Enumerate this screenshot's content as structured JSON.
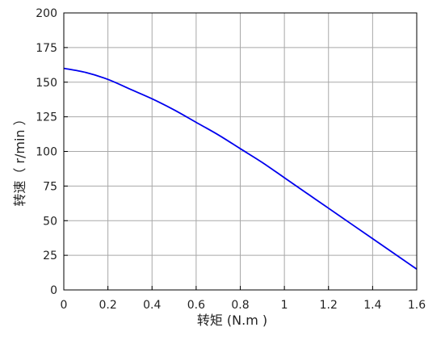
{
  "chart_data": {
    "type": "line",
    "title": "",
    "xlabel": "转矩 (N.m )",
    "ylabel": "转速（ r/min ）",
    "xlim": [
      0,
      1.6
    ],
    "ylim": [
      0,
      200
    ],
    "x_ticks": [
      0,
      0.2,
      0.4,
      0.6,
      0.8,
      1,
      1.2,
      1.4,
      1.6
    ],
    "x_tick_labels": [
      "0",
      "0.2",
      "0.4",
      "0.6",
      "0.8",
      "1",
      "1.2",
      "1.4",
      "1.6"
    ],
    "y_ticks": [
      0,
      25,
      50,
      75,
      100,
      125,
      150,
      175,
      200
    ],
    "y_tick_labels": [
      "0",
      "25",
      "50",
      "75",
      "100",
      "125",
      "150",
      "175",
      "200"
    ],
    "grid": true,
    "legend": "none",
    "series": [
      {
        "color": "#0000ee",
        "x": [
          0,
          0.1,
          0.2,
          0.3,
          0.4,
          0.5,
          0.6,
          0.7,
          0.8,
          0.9,
          1.0,
          1.1,
          1.2,
          1.3,
          1.4,
          1.5,
          1.6
        ],
        "y": [
          160,
          157,
          152,
          145,
          138,
          130,
          121,
          112,
          102,
          92,
          81,
          70,
          59,
          48,
          37,
          26,
          15
        ]
      }
    ]
  }
}
